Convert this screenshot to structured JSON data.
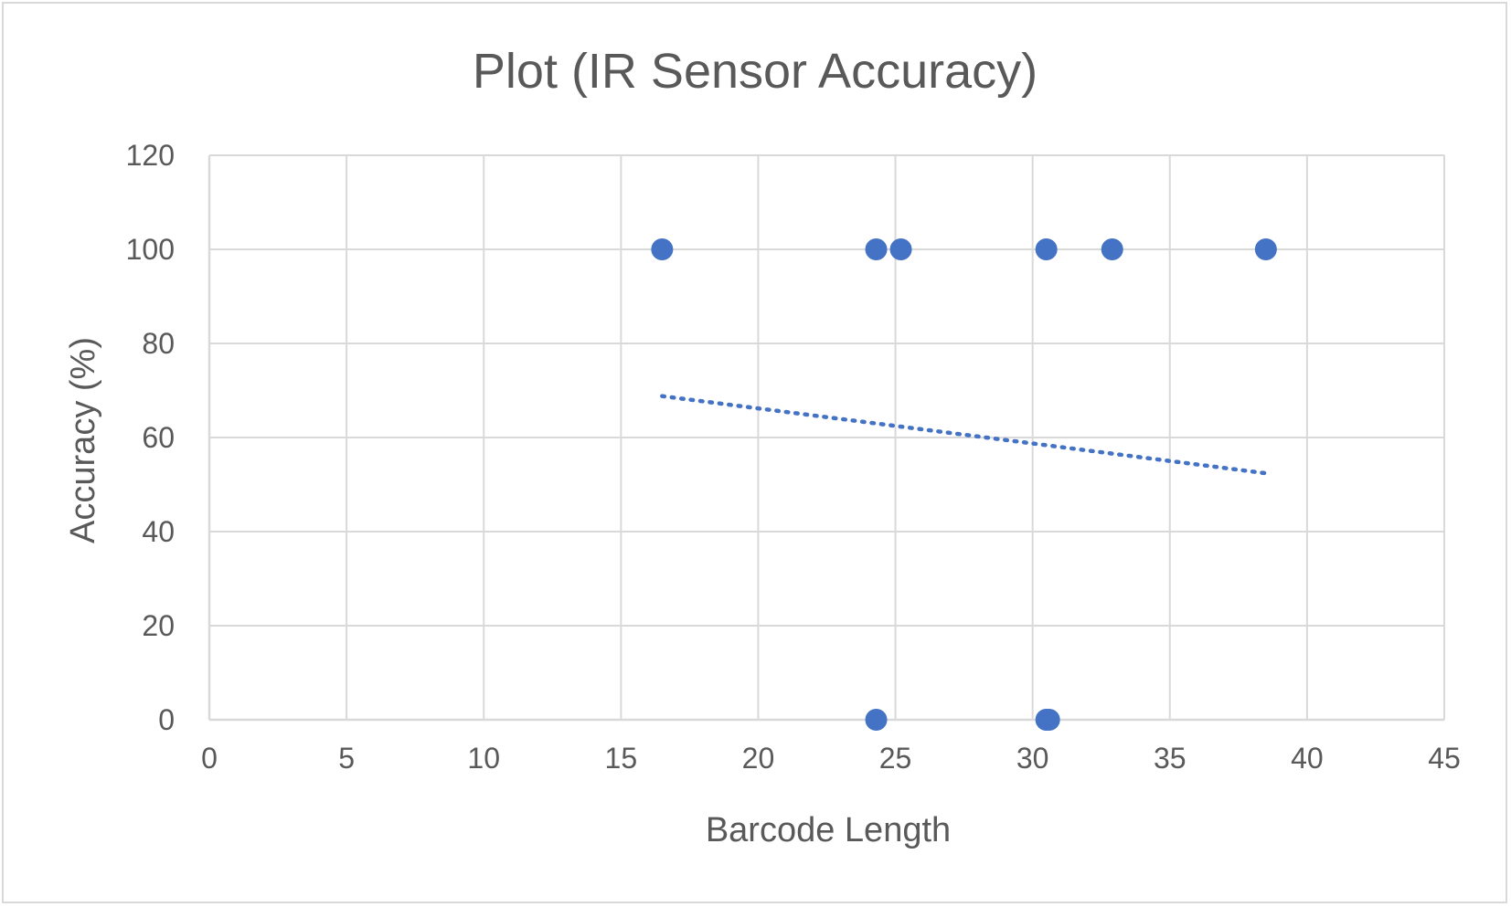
{
  "chart_data": {
    "type": "scatter",
    "title": "Plot (IR Sensor Accuracy)",
    "xlabel": "Barcode Length",
    "ylabel": "Accuracy (%)",
    "xlim": [
      0,
      45
    ],
    "ylim": [
      0,
      120
    ],
    "x_ticks": [
      0,
      5,
      10,
      15,
      20,
      25,
      30,
      35,
      40,
      45
    ],
    "y_ticks": [
      0,
      20,
      40,
      60,
      80,
      100,
      120
    ],
    "grid": "on",
    "legend": "none",
    "color": "#4472c4",
    "series": [
      {
        "points": [
          {
            "x": 16.5,
            "y": 100
          },
          {
            "x": 24.3,
            "y": 100
          },
          {
            "x": 25.2,
            "y": 100
          },
          {
            "x": 30.5,
            "y": 100
          },
          {
            "x": 32.9,
            "y": 100
          },
          {
            "x": 38.5,
            "y": 100
          },
          {
            "x": 24.3,
            "y": 0
          },
          {
            "x": 30.5,
            "y": 0
          },
          {
            "x": 30.6,
            "y": 0
          }
        ]
      }
    ],
    "trendline": {
      "type": "linear",
      "style": "dotted",
      "start": {
        "x": 16.5,
        "y": 68.8
      },
      "end": {
        "x": 38.5,
        "y": 52.4
      }
    }
  }
}
